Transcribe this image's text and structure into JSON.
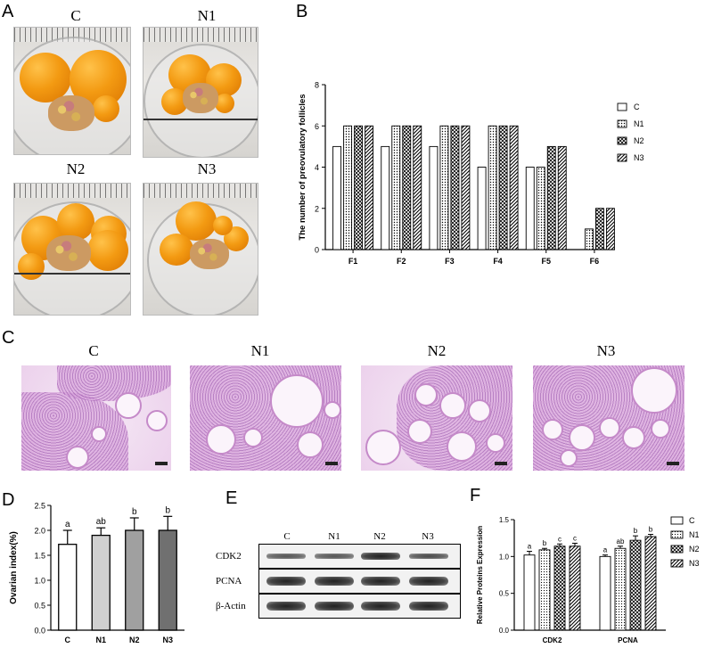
{
  "panels": {
    "a": "A",
    "b": "B",
    "c": "C",
    "d": "D",
    "e": "E",
    "f": "F"
  },
  "photo_titles": [
    "C",
    "N1",
    "N2",
    "N3"
  ],
  "histo_titles": [
    "C",
    "N1",
    "N2",
    "N3"
  ],
  "blot": {
    "lanes": [
      "C",
      "N1",
      "N2",
      "N3"
    ],
    "rows": [
      "CDK2",
      "PCNA",
      "β-Actin"
    ]
  },
  "chart_data": [
    {
      "id": "B",
      "type": "bar",
      "ylabel": "The number of preovulatory follicles",
      "xlabel": "",
      "categories": [
        "F1",
        "F2",
        "F3",
        "F4",
        "F5",
        "F6"
      ],
      "ylim": [
        0,
        8
      ],
      "yticks": [
        0,
        2,
        4,
        6,
        8
      ],
      "legend_position": "right",
      "series": [
        {
          "name": "C",
          "pattern": "blank",
          "values": [
            5,
            5,
            5,
            4,
            4,
            0
          ]
        },
        {
          "name": "N1",
          "pattern": "dots",
          "values": [
            6,
            6,
            6,
            6,
            4,
            1
          ]
        },
        {
          "name": "N2",
          "pattern": "cross",
          "values": [
            6,
            6,
            6,
            6,
            5,
            2
          ]
        },
        {
          "name": "N3",
          "pattern": "hatch",
          "values": [
            6,
            6,
            6,
            6,
            5,
            2
          ]
        }
      ]
    },
    {
      "id": "D",
      "type": "bar",
      "ylabel": "Ovarian index(%)",
      "xlabel": "",
      "categories": [
        "C",
        "N1",
        "N2",
        "N3"
      ],
      "values": [
        1.72,
        1.9,
        2.0,
        2.0
      ],
      "errors": [
        0.28,
        0.15,
        0.25,
        0.28
      ],
      "letters": [
        "a",
        "ab",
        "b",
        "b"
      ],
      "fills": [
        "#ffffff",
        "#d0d0d0",
        "#a0a0a0",
        "#707070"
      ],
      "ylim": [
        0,
        2.5
      ],
      "yticks": [
        "0.0",
        "0.5",
        "1.0",
        "1.5",
        "2.0",
        "2.5"
      ]
    },
    {
      "id": "F",
      "type": "bar",
      "ylabel": "Relative Proteins Expression",
      "xlabel": "",
      "categories": [
        "CDK2",
        "PCNA"
      ],
      "ylim": [
        0,
        1.5
      ],
      "yticks": [
        "0.0",
        "0.5",
        "1.0",
        "1.5"
      ],
      "legend_position": "right",
      "series": [
        {
          "name": "C",
          "pattern": "blank",
          "values": [
            1.02,
            1.0
          ],
          "errors": [
            0.05,
            0.02
          ],
          "letters": [
            "a",
            "a"
          ]
        },
        {
          "name": "N1",
          "pattern": "dots",
          "values": [
            1.09,
            1.11
          ],
          "errors": [
            0.02,
            0.03
          ],
          "letters": [
            "b",
            "ab"
          ]
        },
        {
          "name": "N2",
          "pattern": "cross",
          "values": [
            1.14,
            1.22
          ],
          "errors": [
            0.03,
            0.06
          ],
          "letters": [
            "c",
            "b"
          ]
        },
        {
          "name": "N3",
          "pattern": "hatch",
          "values": [
            1.14,
            1.27
          ],
          "errors": [
            0.04,
            0.03
          ],
          "letters": [
            "c",
            "b"
          ]
        }
      ]
    }
  ]
}
